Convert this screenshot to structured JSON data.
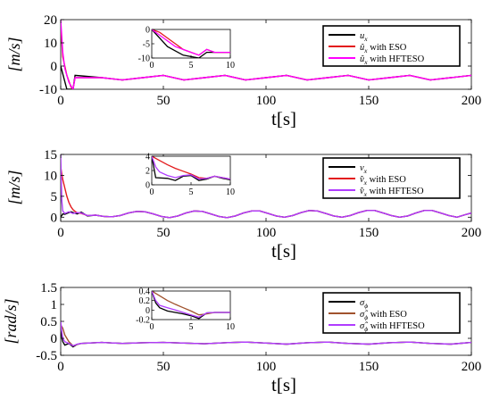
{
  "chart_data": [
    {
      "type": "line",
      "panel": "top",
      "ylabel": "[m/s]",
      "xlabel": "t[s]",
      "xlim": [
        0,
        200
      ],
      "ylim": [
        -10,
        20
      ],
      "xticks": [
        "0",
        "50",
        "100",
        "150",
        "200"
      ],
      "yticks": [
        "-10",
        "0",
        "10",
        "20"
      ],
      "grid": false,
      "legend_position": "top-right",
      "series": [
        {
          "name": "u_x",
          "color": "#000000",
          "x": [
            0,
            3,
            6,
            7,
            20,
            30,
            40,
            50,
            60,
            70,
            80,
            90,
            100,
            110,
            120,
            130,
            140,
            150,
            160,
            170,
            180,
            190,
            200
          ],
          "y": [
            0,
            -10,
            -10,
            -4,
            -5,
            -6,
            -5,
            -4,
            -6,
            -5,
            -4,
            -6,
            -5,
            -4,
            -6,
            -5,
            -4,
            -6,
            -5,
            -4,
            -6,
            -5,
            -4
          ]
        },
        {
          "name": "û_x with ESO",
          "color": "#e31a1c",
          "x": [
            0,
            1,
            3,
            5,
            6,
            7,
            20,
            30,
            40,
            50,
            60,
            70,
            80,
            90,
            100,
            110,
            120,
            130,
            140,
            150,
            160,
            170,
            180,
            190,
            200
          ],
          "y": [
            18,
            4,
            -4,
            -9,
            -10,
            -5,
            -5,
            -6,
            -5,
            -4,
            -6,
            -5,
            -4,
            -6,
            -5,
            -4,
            -6,
            -5,
            -4,
            -6,
            -5,
            -4,
            -6,
            -5,
            -4
          ]
        },
        {
          "name": "û_x with HFTESO",
          "color": "#ff00ff",
          "x": [
            0,
            1,
            2,
            4,
            6,
            7,
            20,
            30,
            40,
            50,
            60,
            70,
            80,
            90,
            100,
            110,
            120,
            130,
            140,
            150,
            160,
            170,
            180,
            190,
            200
          ],
          "y": [
            20,
            6,
            -1,
            -7,
            -10,
            -5,
            -5,
            -6,
            -5,
            -4,
            -6,
            -5,
            -4,
            -6,
            -5,
            -4,
            -6,
            -5,
            -4,
            -6,
            -5,
            -4,
            -6,
            -5,
            -4
          ]
        }
      ],
      "inset": {
        "xlim": [
          0,
          10
        ],
        "ylim": [
          -10,
          0
        ],
        "xticks": [
          "0",
          "5",
          "10"
        ],
        "yticks": [
          "-10",
          "-5",
          "0"
        ],
        "series": [
          {
            "color": "#000000",
            "x": [
              0,
              2,
              4,
              6,
              7,
              8,
              10
            ],
            "y": [
              0,
              -6,
              -9,
              -10,
              -8,
              -8,
              -8
            ]
          },
          {
            "color": "#e31a1c",
            "x": [
              0,
              1,
              2,
              3,
              4,
              5,
              6,
              7,
              8,
              10
            ],
            "y": [
              0,
              -1,
              -3,
              -5,
              -7,
              -8,
              -9,
              -7,
              -8,
              -8
            ]
          },
          {
            "color": "#ff00ff",
            "x": [
              0,
              1,
              2,
              3,
              4,
              5,
              6,
              7,
              8,
              10
            ],
            "y": [
              0,
              -2,
              -4,
              -6,
              -7,
              -8,
              -9,
              -7,
              -8,
              -8
            ]
          }
        ]
      }
    },
    {
      "type": "line",
      "panel": "middle",
      "ylabel": "[m/s]",
      "xlabel": "t[s]",
      "xlim": [
        0,
        200
      ],
      "ylim": [
        -1,
        15
      ],
      "xticks": [
        "0",
        "50",
        "100",
        "150",
        "200"
      ],
      "yticks": [
        "0",
        "5",
        "10",
        "15"
      ],
      "grid": false,
      "legend_position": "right",
      "series": [
        {
          "name": "v_x",
          "color": "#000000",
          "x": [
            0,
            1,
            2,
            5,
            8,
            10,
            13,
            17,
            21,
            25,
            29,
            33,
            37,
            41,
            45,
            49,
            53,
            57,
            61,
            65,
            69,
            73,
            77,
            81,
            85,
            89,
            93,
            97,
            101,
            105,
            109,
            113,
            117,
            121,
            125,
            129,
            133,
            137,
            141,
            145,
            149,
            153,
            157,
            161,
            165,
            169,
            173,
            177,
            181,
            185,
            189,
            193,
            197,
            200
          ],
          "y": [
            0,
            0.8,
            0.7,
            1.3,
            0.8,
            1.2,
            0.3,
            0.5,
            0.2,
            0.1,
            0.4,
            1.0,
            1.4,
            1.3,
            0.8,
            0.2,
            -0.1,
            0.3,
            1.0,
            1.5,
            1.4,
            0.8,
            0.2,
            -0.1,
            0.3,
            1.0,
            1.5,
            1.5,
            0.9,
            0.3,
            0.0,
            0.4,
            1.1,
            1.6,
            1.5,
            0.9,
            0.3,
            0.0,
            0.4,
            1.1,
            1.6,
            1.6,
            1.0,
            0.4,
            0.0,
            0.3,
            1.0,
            1.6,
            1.6,
            1.0,
            0.4,
            0.0,
            0.6,
            1.0
          ]
        },
        {
          "name": "v̂_x with ESO",
          "color": "#e31a1c",
          "x": [
            0,
            1,
            2,
            3,
            4,
            5,
            6,
            7,
            8,
            10,
            13,
            17,
            21,
            25,
            29,
            33,
            37,
            41,
            45,
            49,
            53,
            57,
            61,
            65,
            69,
            73,
            77,
            81,
            85,
            89,
            93,
            97,
            101,
            105,
            109,
            113,
            117,
            121,
            125,
            129,
            133,
            137,
            141,
            145,
            149,
            153,
            157,
            161,
            165,
            169,
            173,
            177,
            181,
            185,
            189,
            193,
            197,
            200
          ],
          "y": [
            12,
            9,
            7,
            5,
            3.5,
            2.5,
            1.8,
            1.4,
            1.1,
            0.9,
            0.4,
            0.5,
            0.2,
            0.1,
            0.4,
            1.0,
            1.4,
            1.3,
            0.8,
            0.2,
            -0.1,
            0.3,
            1.0,
            1.5,
            1.4,
            0.8,
            0.2,
            -0.1,
            0.3,
            1.0,
            1.5,
            1.5,
            0.9,
            0.3,
            0.0,
            0.4,
            1.1,
            1.6,
            1.5,
            0.9,
            0.3,
            0.0,
            0.4,
            1.1,
            1.6,
            1.6,
            1.0,
            0.4,
            0.0,
            0.3,
            1.0,
            1.6,
            1.6,
            1.0,
            0.4,
            0.0,
            0.6,
            1.0
          ]
        },
        {
          "name": "v̂_x with HFTESO",
          "color": "#b03cff",
          "x": [
            0,
            0.5,
            1,
            2,
            4,
            6,
            8,
            10,
            13,
            17,
            21,
            25,
            29,
            33,
            37,
            41,
            45,
            49,
            53,
            57,
            61,
            65,
            69,
            73,
            77,
            81,
            85,
            89,
            93,
            97,
            101,
            105,
            109,
            113,
            117,
            121,
            125,
            129,
            133,
            137,
            141,
            145,
            149,
            153,
            157,
            161,
            165,
            169,
            173,
            177,
            181,
            185,
            189,
            193,
            197,
            200
          ],
          "y": [
            15,
            4,
            1.5,
            0.9,
            1.3,
            0.9,
            1.1,
            1.0,
            0.4,
            0.5,
            0.2,
            0.1,
            0.4,
            1.0,
            1.4,
            1.3,
            0.8,
            0.2,
            -0.1,
            0.3,
            1.0,
            1.5,
            1.4,
            0.8,
            0.2,
            -0.1,
            0.3,
            1.0,
            1.5,
            1.5,
            0.9,
            0.3,
            0.0,
            0.4,
            1.1,
            1.6,
            1.5,
            0.9,
            0.3,
            0.0,
            0.4,
            1.1,
            1.6,
            1.6,
            1.0,
            0.4,
            0.0,
            0.3,
            1.0,
            1.6,
            1.6,
            1.0,
            0.4,
            0.0,
            0.6,
            1.0
          ]
        }
      ],
      "inset": {
        "xlim": [
          0,
          10
        ],
        "ylim": [
          0,
          4
        ],
        "xticks": [
          "0",
          "5",
          "10"
        ],
        "yticks": [
          "0",
          "2",
          "4"
        ],
        "series": [
          {
            "color": "#000000",
            "x": [
              0,
              0.5,
              2,
              3,
              4,
              5,
              6,
              7,
              8,
              9,
              10
            ],
            "y": [
              4,
              1,
              0.9,
              0.6,
              1.2,
              1.3,
              0.6,
              0.8,
              1.2,
              0.9,
              0.7
            ]
          },
          {
            "color": "#e31a1c",
            "x": [
              0,
              1,
              2,
              3,
              4,
              5,
              6,
              7,
              8,
              9,
              10
            ],
            "y": [
              4,
              3.4,
              2.8,
              2.3,
              1.9,
              1.5,
              1.0,
              0.9,
              1.2,
              1.0,
              0.8
            ]
          },
          {
            "color": "#b03cff",
            "x": [
              0,
              0.5,
              1,
              2,
              3,
              4,
              5,
              6,
              7,
              8,
              9,
              10
            ],
            "y": [
              4,
              2.5,
              1.8,
              1.3,
              1.0,
              1.3,
              1.4,
              0.8,
              0.9,
              1.2,
              1.0,
              0.8
            ]
          }
        ]
      }
    },
    {
      "type": "line",
      "panel": "bottom",
      "ylabel": "[rad/s]",
      "xlabel": "t[s]",
      "xlim": [
        0,
        200
      ],
      "ylim": [
        -0.5,
        1.5
      ],
      "xticks": [
        "0",
        "50",
        "100",
        "150",
        "200"
      ],
      "yticks": [
        "-0.5",
        "0",
        "0.5",
        "1",
        "1.5"
      ],
      "grid": false,
      "legend_position": "right",
      "series": [
        {
          "name": "σ_ϕ",
          "color": "#000000",
          "x": [
            0,
            1,
            2,
            4,
            6,
            8,
            10,
            20,
            30,
            40,
            50,
            60,
            70,
            80,
            90,
            100,
            110,
            120,
            130,
            140,
            150,
            160,
            170,
            180,
            190,
            200
          ],
          "y": [
            0.2,
            -0.1,
            -0.2,
            -0.15,
            -0.25,
            -0.18,
            -0.15,
            -0.12,
            -0.15,
            -0.13,
            -0.12,
            -0.14,
            -0.16,
            -0.13,
            -0.11,
            -0.14,
            -0.17,
            -0.13,
            -0.11,
            -0.15,
            -0.17,
            -0.13,
            -0.11,
            -0.15,
            -0.17,
            -0.12
          ]
        },
        {
          "name": "σ̂_ϕ with ESO",
          "color": "#a0522d",
          "x": [
            0,
            1,
            2,
            4,
            6,
            8,
            10,
            20,
            30,
            40,
            50,
            60,
            70,
            80,
            90,
            100,
            110,
            120,
            130,
            140,
            150,
            160,
            170,
            180,
            190,
            200
          ],
          "y": [
            0.4,
            0.3,
            0.1,
            -0.1,
            -0.22,
            -0.18,
            -0.15,
            -0.12,
            -0.15,
            -0.13,
            -0.12,
            -0.14,
            -0.16,
            -0.13,
            -0.11,
            -0.14,
            -0.17,
            -0.13,
            -0.11,
            -0.15,
            -0.17,
            -0.13,
            -0.11,
            -0.15,
            -0.17,
            -0.12
          ]
        },
        {
          "name": "σ̂_ϕ with HFTESO",
          "color": "#b03cff",
          "x": [
            0,
            0.5,
            1,
            2,
            4,
            6,
            8,
            10,
            20,
            30,
            40,
            50,
            60,
            70,
            80,
            90,
            100,
            110,
            120,
            130,
            140,
            150,
            160,
            170,
            180,
            190,
            200
          ],
          "y": [
            0.5,
            0.2,
            0.0,
            -0.1,
            -0.15,
            -0.22,
            -0.17,
            -0.15,
            -0.12,
            -0.15,
            -0.13,
            -0.12,
            -0.14,
            -0.16,
            -0.13,
            -0.11,
            -0.14,
            -0.17,
            -0.13,
            -0.11,
            -0.15,
            -0.17,
            -0.13,
            -0.11,
            -0.15,
            -0.17,
            -0.12
          ]
        }
      ],
      "inset": {
        "xlim": [
          0,
          10
        ],
        "ylim": [
          -0.2,
          0.4
        ],
        "xticks": [
          "0",
          "5",
          "10"
        ],
        "yticks": [
          "-0.2",
          "0",
          "0.2",
          "0.4"
        ],
        "series": [
          {
            "color": "#000000",
            "x": [
              0,
              0.5,
              1,
              2,
              3,
              4,
              5,
              6,
              7,
              8,
              10
            ],
            "y": [
              0.4,
              0.15,
              0.05,
              -0.02,
              -0.05,
              -0.08,
              -0.12,
              -0.18,
              -0.06,
              -0.05,
              -0.05
            ]
          },
          {
            "color": "#a0522d",
            "x": [
              0,
              1,
              2,
              3,
              4,
              5,
              6,
              7,
              8,
              10
            ],
            "y": [
              0.4,
              0.3,
              0.2,
              0.12,
              0.05,
              -0.02,
              -0.1,
              -0.08,
              -0.05,
              -0.05
            ]
          },
          {
            "color": "#b03cff",
            "x": [
              0,
              0.5,
              1,
              2,
              3,
              4,
              5,
              6,
              7,
              8,
              10
            ],
            "y": [
              0.4,
              0.2,
              0.1,
              0.05,
              0.0,
              -0.05,
              -0.1,
              -0.15,
              -0.06,
              -0.05,
              -0.05
            ]
          }
        ]
      }
    }
  ]
}
